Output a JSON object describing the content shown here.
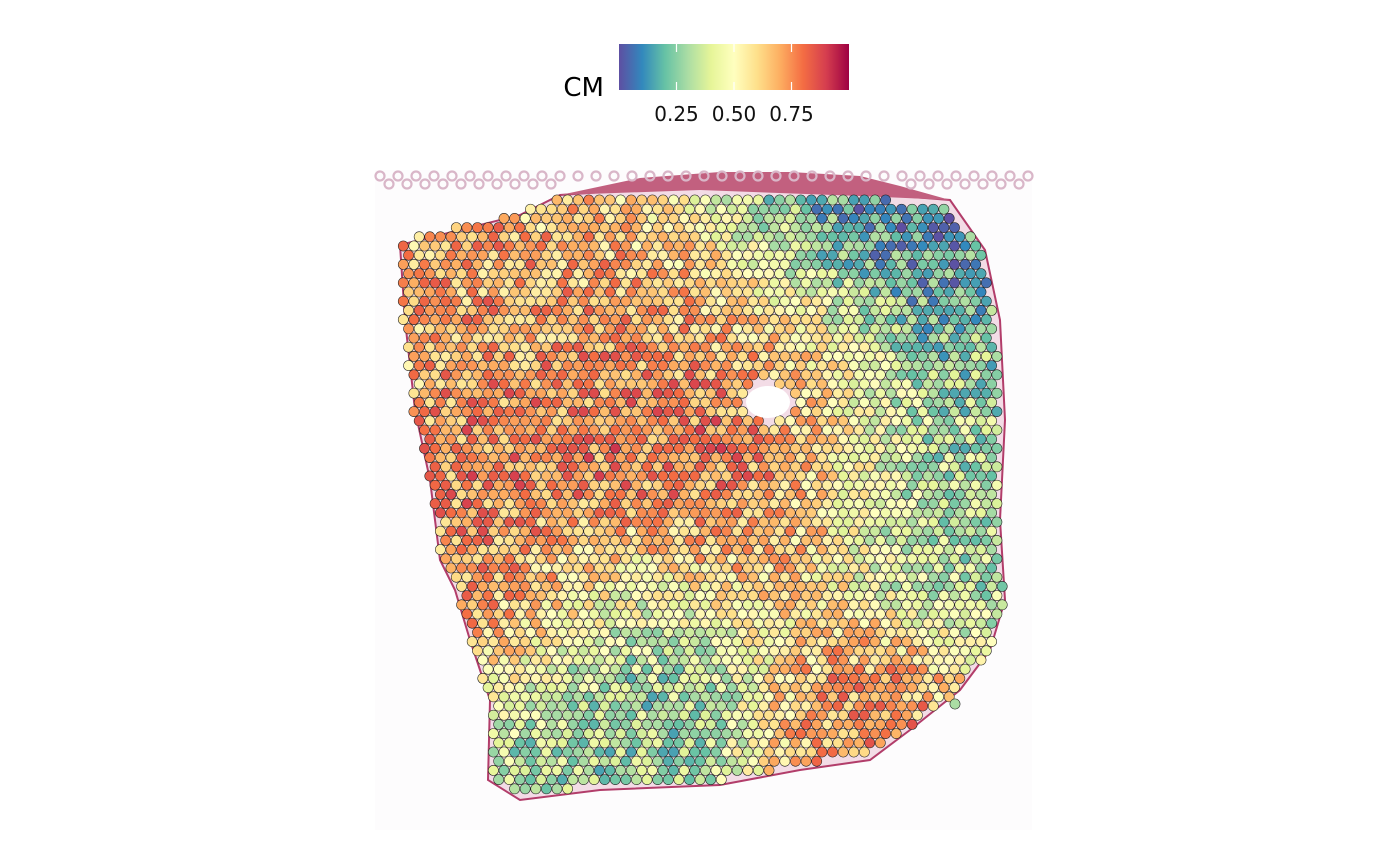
{
  "chart_data": {
    "type": "scatter",
    "subtype": "spatial-transcriptomics spot map over tissue histology image",
    "legend": {
      "title": "CM",
      "placement": "top",
      "colormap": "Spectral (reversed): low = blue/purple, mid = pale yellow, high = dark red",
      "ticks": [
        0.25,
        0.5,
        0.75
      ],
      "tick_labels": [
        "0.25",
        "0.50",
        "0.75"
      ],
      "range": [
        0.0,
        1.0
      ],
      "gradient_stops": [
        {
          "value": 0.0,
          "color": "#5e4fa2"
        },
        {
          "value": 0.1,
          "color": "#3288bd"
        },
        {
          "value": 0.2,
          "color": "#66c2a5"
        },
        {
          "value": 0.3,
          "color": "#abdda4"
        },
        {
          "value": 0.4,
          "color": "#e6f598"
        },
        {
          "value": 0.5,
          "color": "#ffffbf"
        },
        {
          "value": 0.6,
          "color": "#fee08b"
        },
        {
          "value": 0.7,
          "color": "#fdae61"
        },
        {
          "value": 0.8,
          "color": "#f46d43"
        },
        {
          "value": 0.9,
          "color": "#d53e4f"
        },
        {
          "value": 1.0,
          "color": "#9e0142"
        }
      ]
    },
    "axes": "none",
    "grid": false,
    "regions": [
      {
        "name": "upper-left band",
        "level": 0.75
      },
      {
        "name": "central band",
        "level": 0.85
      },
      {
        "name": "lower-left patch",
        "level": 0.8
      },
      {
        "name": "bottom-right patch",
        "level": 0.8
      },
      {
        "name": "upper-right corner",
        "level": 0.1
      },
      {
        "name": "right side",
        "level": 0.3
      },
      {
        "name": "lower middle",
        "level": 0.25
      },
      {
        "name": "background",
        "level": 0.35
      }
    ]
  }
}
